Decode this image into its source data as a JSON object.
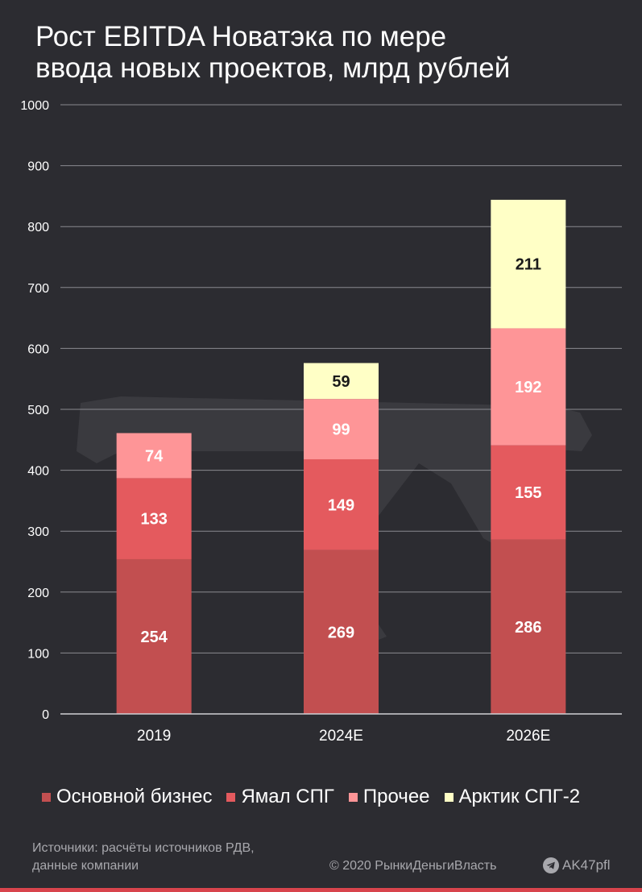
{
  "chart_data": {
    "type": "bar",
    "stacked": true,
    "title_lines": [
      "Рост EBITDA Новатэка по мере",
      "ввода новых проектов, млрд рублей"
    ],
    "categories": [
      "2019",
      "2024E",
      "2026E"
    ],
    "series": [
      {
        "name": "Основной бизнес",
        "values": [
          254,
          269,
          286
        ],
        "color": "#c24f50"
      },
      {
        "name": "Ямал СПГ",
        "values": [
          133,
          149,
          155
        ],
        "color": "#e45a5e"
      },
      {
        "name": "Прочее",
        "values": [
          74,
          99,
          192
        ],
        "color": "#fe9597"
      },
      {
        "name": "Арктик СПГ-2",
        "values": [
          0,
          59,
          211
        ],
        "color": "#ffffc6"
      }
    ],
    "ylim": [
      0,
      1000
    ],
    "yticks": [
      "0",
      "100",
      "200",
      "300",
      "400",
      "500",
      "600",
      "700",
      "800",
      "900",
      "1000"
    ],
    "grid": true,
    "legend_position": "bottom"
  },
  "footer": {
    "source_line1": "Источники: расчёты источников РДВ,",
    "source_line2": "данные компании",
    "copyright": "© 2020  РынкиДеньгиВласть",
    "channel": "AK47pfl"
  },
  "colors": {
    "background": "#2c2c31",
    "grid": "#8a8a90",
    "accent_bar": "#d8444c"
  },
  "icons": {
    "channel_icon": "telegram-icon",
    "watermark": "rifle-watermark"
  }
}
